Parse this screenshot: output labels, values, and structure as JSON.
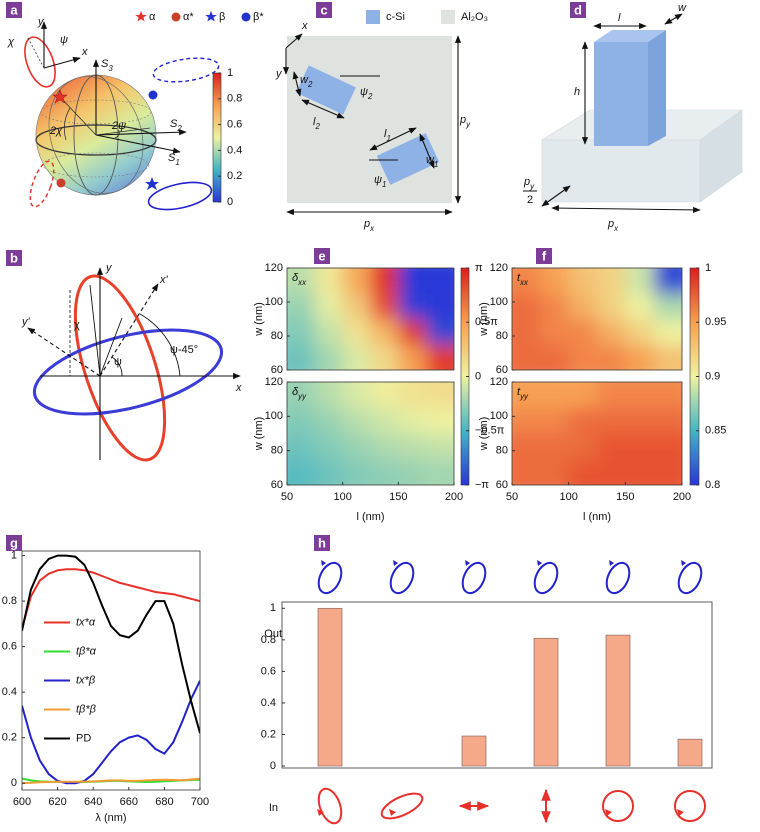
{
  "panels": [
    "a",
    "b",
    "c",
    "d",
    "e",
    "f",
    "g",
    "h"
  ],
  "sphere": {
    "legend": [
      "α",
      "α*",
      "β",
      "β*"
    ],
    "axes": [
      {
        "main": "S",
        "sub": "3"
      },
      {
        "main": "S",
        "sub": "2"
      },
      {
        "main": "S",
        "sub": "1"
      }
    ],
    "angles": [
      "2χ",
      "2ψ"
    ],
    "frame": [
      "x",
      "y",
      "χ",
      "ψ"
    ],
    "colorbar": {
      "zlim": [
        0,
        1
      ],
      "zticks": [
        0,
        0.2,
        0.4,
        0.6,
        0.8,
        1
      ]
    }
  },
  "ellipse": {
    "axes": [
      "x",
      "y",
      "x'",
      "y'"
    ],
    "angles": [
      "χ",
      "ψ",
      "ψ-45°"
    ]
  },
  "unit_cell": {
    "legend": [
      "c-Si",
      "Al₂O₃"
    ],
    "labels": [
      "x",
      "y",
      {
        "main": "w",
        "sub": "2"
      },
      {
        "main": "l",
        "sub": "2"
      },
      {
        "main": "ψ",
        "sub": "2"
      },
      {
        "main": "l",
        "sub": "1"
      },
      {
        "main": "w",
        "sub": "1"
      },
      {
        "main": "ψ",
        "sub": "1"
      },
      {
        "main": "p",
        "sub": "y"
      },
      {
        "main": "p",
        "sub": "x"
      }
    ]
  },
  "pillar": {
    "labels": [
      "l",
      "w",
      "h",
      {
        "main": "p",
        "sub": "y",
        "den": "2"
      },
      {
        "main": "p",
        "sub": "x"
      }
    ]
  },
  "chart_data": [
    {
      "type": "heatmap",
      "annotation": {
        "main": "δ",
        "sub": "xx"
      },
      "xbins": [
        50,
        75,
        100,
        125,
        150,
        175,
        200
      ],
      "ybins": [
        60,
        75,
        90,
        105,
        120
      ],
      "values": [
        [
          -1.2,
          -0.7,
          -0.2,
          0.5,
          1.6,
          2.8
        ],
        [
          -1.0,
          -0.4,
          0.3,
          1.2,
          2.8,
          -2.9
        ],
        [
          -0.8,
          -0.1,
          0.8,
          2.6,
          -3.0,
          -3.1
        ],
        [
          -0.5,
          0.2,
          1.4,
          2.9,
          -3.1,
          -3.1
        ]
      ],
      "xlim": [
        50,
        200
      ],
      "ylim": [
        60,
        120
      ],
      "yticks": [
        60,
        80,
        100,
        120
      ],
      "ylabel": "w (nm)",
      "zlim": [
        -3.1416,
        3.1416
      ],
      "zticks": [
        {
          "value": -3.1416,
          "label": "−π"
        },
        {
          "value": -1.5708,
          "label": "−0.5π"
        },
        0,
        {
          "value": 1.5708,
          "label": "0.5π"
        },
        {
          "value": 3.1416,
          "label": "π"
        }
      ]
    },
    {
      "type": "heatmap",
      "annotation": {
        "main": "δ",
        "sub": "yy"
      },
      "xbins": [
        50,
        75,
        100,
        125,
        150,
        175,
        200
      ],
      "ybins": [
        60,
        75,
        90,
        105,
        120
      ],
      "values": [
        [
          -1.4,
          -1.2,
          -1.0,
          -0.9,
          -0.8,
          -0.7
        ],
        [
          -1.2,
          -1.0,
          -0.8,
          -0.6,
          -0.5,
          -0.4
        ],
        [
          -1.0,
          -0.8,
          -0.5,
          -0.3,
          -0.1,
          0.0
        ],
        [
          -0.8,
          -0.5,
          -0.2,
          0.1,
          0.3,
          0.4
        ]
      ],
      "xlim": [
        50,
        200
      ],
      "ylim": [
        60,
        120
      ],
      "xticks": [
        50,
        100,
        150,
        200
      ],
      "yticks": [
        60,
        80,
        100,
        120
      ],
      "xlabel": "l (nm)",
      "ylabel": "w (nm)"
    },
    {
      "type": "heatmap",
      "annotation": {
        "main": "t",
        "sub": "xx"
      },
      "xbins": [
        50,
        75,
        100,
        125,
        150,
        175,
        200
      ],
      "ybins": [
        60,
        75,
        90,
        105,
        120
      ],
      "values": [
        [
          0.97,
          0.97,
          0.96,
          0.96,
          0.95,
          0.93
        ],
        [
          0.97,
          0.96,
          0.96,
          0.94,
          0.92,
          0.9
        ],
        [
          0.97,
          0.96,
          0.94,
          0.92,
          0.9,
          0.88
        ],
        [
          0.96,
          0.95,
          0.93,
          0.92,
          0.89,
          0.81
        ]
      ],
      "xlim": [
        50,
        200
      ],
      "ylim": [
        60,
        120
      ],
      "yticks": [
        60,
        80,
        100,
        120
      ],
      "ylabel": "w (nm)",
      "zlim": [
        0.8,
        1
      ],
      "zticks": [
        0.8,
        0.85,
        0.9,
        0.95,
        1
      ]
    },
    {
      "type": "heatmap",
      "annotation": {
        "main": "t",
        "sub": "yy"
      },
      "xbins": [
        50,
        75,
        100,
        125,
        150,
        175,
        200
      ],
      "ybins": [
        60,
        75,
        90,
        105,
        120
      ],
      "values": [
        [
          0.97,
          0.97,
          0.98,
          0.98,
          0.98,
          0.98
        ],
        [
          0.97,
          0.97,
          0.97,
          0.98,
          0.98,
          0.98
        ],
        [
          0.96,
          0.96,
          0.97,
          0.97,
          0.97,
          0.97
        ],
        [
          0.95,
          0.95,
          0.95,
          0.96,
          0.96,
          0.96
        ]
      ],
      "xlim": [
        50,
        200
      ],
      "ylim": [
        60,
        120
      ],
      "xticks": [
        50,
        100,
        150,
        200
      ],
      "yticks": [
        60,
        80,
        100,
        120
      ],
      "xlabel": "l (nm)",
      "ylabel": "w (nm)"
    },
    {
      "type": "line",
      "xlabel": "λ (nm)",
      "legend": "center left",
      "x": [
        600,
        605,
        610,
        615,
        620,
        625,
        630,
        635,
        640,
        645,
        650,
        655,
        660,
        665,
        670,
        675,
        680,
        685,
        690,
        695,
        700
      ],
      "xlim": [
        600,
        700
      ],
      "xticks": [
        600,
        620,
        640,
        660,
        680,
        700
      ],
      "ylim": [
        -0.03,
        1.02
      ],
      "yticks": [
        0,
        0.2,
        0.4,
        0.6,
        0.8,
        1
      ],
      "series": [
        {
          "name": "tx*α",
          "color": "#e8302a",
          "values": [
            0.68,
            0.82,
            0.89,
            0.92,
            0.935,
            0.94,
            0.94,
            0.935,
            0.925,
            0.91,
            0.895,
            0.88,
            0.87,
            0.86,
            0.85,
            0.84,
            0.835,
            0.83,
            0.82,
            0.81,
            0.8
          ]
        },
        {
          "name": "tβ*α",
          "color": "#33dd33",
          "values": [
            0.02,
            0.012,
            0.008,
            0.006,
            0.005,
            0.005,
            0.005,
            0.005,
            0.006,
            0.008,
            0.01,
            0.01,
            0.008,
            0.006,
            0.005,
            0.006,
            0.008,
            0.01,
            0.012,
            0.014,
            0.015
          ]
        },
        {
          "name": "tx*β",
          "color": "#2222cc",
          "values": [
            0.34,
            0.2,
            0.1,
            0.04,
            0.01,
            0.0,
            0.0,
            0.01,
            0.04,
            0.09,
            0.14,
            0.18,
            0.2,
            0.21,
            0.19,
            0.15,
            0.13,
            0.18,
            0.27,
            0.37,
            0.45
          ]
        },
        {
          "name": "tβ*β",
          "color": "#f39c34",
          "values": [
            0.0,
            0.002,
            0.004,
            0.005,
            0.006,
            0.006,
            0.006,
            0.007,
            0.008,
            0.01,
            0.012,
            0.012,
            0.01,
            0.01,
            0.012,
            0.014,
            0.015,
            0.014,
            0.013,
            0.016,
            0.02
          ]
        },
        {
          "name": "PD",
          "color": "#000000",
          "values": [
            0.67,
            0.85,
            0.94,
            0.985,
            1.0,
            1.0,
            0.995,
            0.96,
            0.88,
            0.78,
            0.69,
            0.65,
            0.64,
            0.67,
            0.74,
            0.8,
            0.8,
            0.7,
            0.52,
            0.36,
            0.22
          ]
        }
      ]
    },
    {
      "type": "bar",
      "categories": [
        null,
        null,
        null,
        null,
        null,
        null
      ],
      "values": [
        1.0,
        0.0,
        0.19,
        0.81,
        0.83,
        0.17
      ],
      "color": "#f6a988",
      "ylim": [
        0,
        1.04
      ],
      "yticks": [
        0,
        0.2,
        0.4,
        0.6,
        0.8,
        1
      ],
      "annotations": [
        "Out",
        "In"
      ]
    }
  ]
}
